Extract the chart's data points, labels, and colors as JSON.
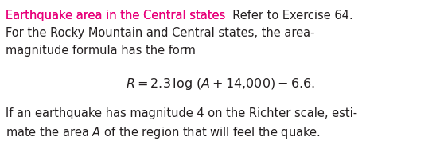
{
  "title_colored": "Earthquake area in the Central states",
  "title_color": "#e8007a",
  "title_rest": "  Refer to Exercise 64.",
  "line2": "For the Rocky Mountain and Central states, the area-",
  "line3": "magnitude formula has the form",
  "formula": "$\\mathit{R} = 2.3\\,\\log\\,(\\mathit{A} + 14{,}000) - 6.6.$",
  "line5": "If an earthquake has magnitude 4 on the Richter scale, esti-",
  "line6": "mate the area $\\mathit{A}$ of the region that will feel the quake.",
  "bg_color": "#ffffff",
  "text_color": "#231f20",
  "font_size": 10.5,
  "formula_font_size": 11.5,
  "fig_width": 5.53,
  "fig_height": 2.06,
  "dpi": 100
}
